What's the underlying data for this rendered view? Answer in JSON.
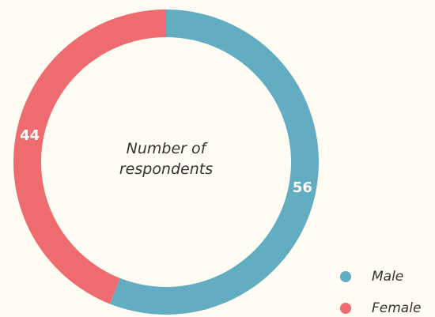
{
  "chart_data": {
    "type": "donut",
    "center_label": "Number of respondents",
    "categories": [
      "Male",
      "Female"
    ],
    "values": [
      56,
      44
    ],
    "colors": [
      "#62adc1",
      "#ee6b70"
    ],
    "legend": "bottom-right"
  }
}
